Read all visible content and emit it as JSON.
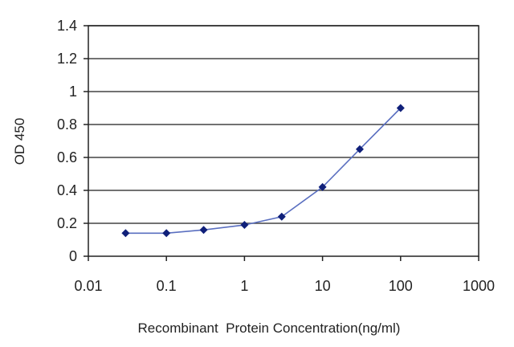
{
  "chart_data": {
    "type": "line",
    "title": "",
    "xlabel": "Recombinant  Protein Concentration(ng/ml)",
    "ylabel": "OD 450",
    "xscale": "log",
    "xlim": [
      0.01,
      1000
    ],
    "ylim": [
      0,
      1.4
    ],
    "grid": "horizontal",
    "legend": "none",
    "x_ticks": [
      "0.01",
      "0.1",
      "1",
      "10",
      "100",
      "1000"
    ],
    "y_ticks": [
      "0",
      "0.2",
      "0.4",
      "0.6",
      "0.8",
      "1",
      "1.2",
      "1.4"
    ],
    "series": [
      {
        "x": [
          0.03,
          0.1,
          0.3,
          1,
          3,
          10,
          30,
          100
        ],
        "values": [
          0.14,
          0.14,
          0.16,
          0.19,
          0.24,
          0.42,
          0.65,
          0.9
        ]
      }
    ],
    "colors": {
      "line": "#5a6fc0",
      "marker": "#10207a",
      "grid": "#444444",
      "axis": "#222222"
    }
  }
}
